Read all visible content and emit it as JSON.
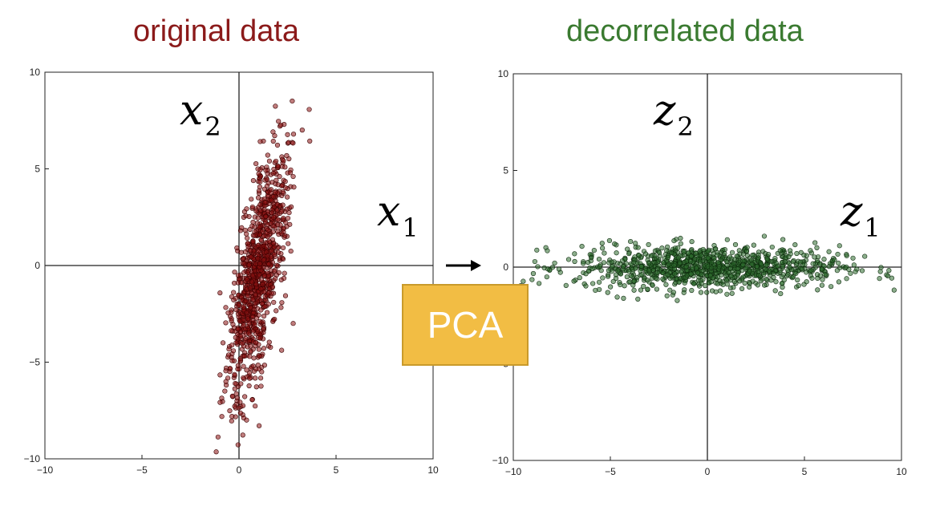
{
  "left": {
    "title": "original data",
    "xvar": "x",
    "xvar_sub": "1",
    "yvar": "x",
    "yvar_sub": "2"
  },
  "right": {
    "title": "decorrelated data",
    "xvar": "z",
    "xvar_sub": "1",
    "yvar": "z",
    "yvar_sub": "2"
  },
  "pca_label": "PCA",
  "colors": {
    "left_title": "#8b1a1a",
    "right_title": "#3a7a30",
    "left_points": "#8b1010",
    "left_points_edge": "#3a0000",
    "right_points": "#2d6b2d",
    "right_points_edge": "#0d2a0d",
    "pca_fill": "#f2bd44"
  },
  "chart_data": [
    {
      "type": "scatter",
      "title": "original data",
      "xlim": [
        -10,
        10
      ],
      "ylim": [
        -10,
        10
      ],
      "xticks": [
        -10,
        -5,
        0,
        5,
        10
      ],
      "yticks": [
        -10,
        -5,
        0,
        5,
        10
      ],
      "xtick_labels": [
        "−10",
        "−5",
        "0",
        "5",
        "10"
      ],
      "ytick_labels": [
        "−10",
        "−5",
        "0",
        "5",
        "10"
      ],
      "grid": false,
      "n_points": 1000,
      "distribution": {
        "mean": [
          1.0,
          -0.5
        ],
        "std_major": 3.4,
        "std_minor": 0.55,
        "major_axis_slope": 3.4
      }
    },
    {
      "type": "scatter",
      "title": "decorrelated data",
      "xlim": [
        -10,
        10
      ],
      "ylim": [
        -10,
        10
      ],
      "xticks": [
        -10,
        -5,
        0,
        5,
        10
      ],
      "yticks": [
        -10,
        -5,
        0,
        5,
        10
      ],
      "xtick_labels": [
        "−10",
        "−5",
        "0",
        "5",
        "10"
      ],
      "ytick_labels": [
        "−10",
        "−5",
        "0",
        "5",
        "10"
      ],
      "grid": false,
      "n_points": 1000,
      "distribution": {
        "mean": [
          0.0,
          0.0
        ],
        "std_x": 3.4,
        "std_y": 0.55
      }
    }
  ]
}
